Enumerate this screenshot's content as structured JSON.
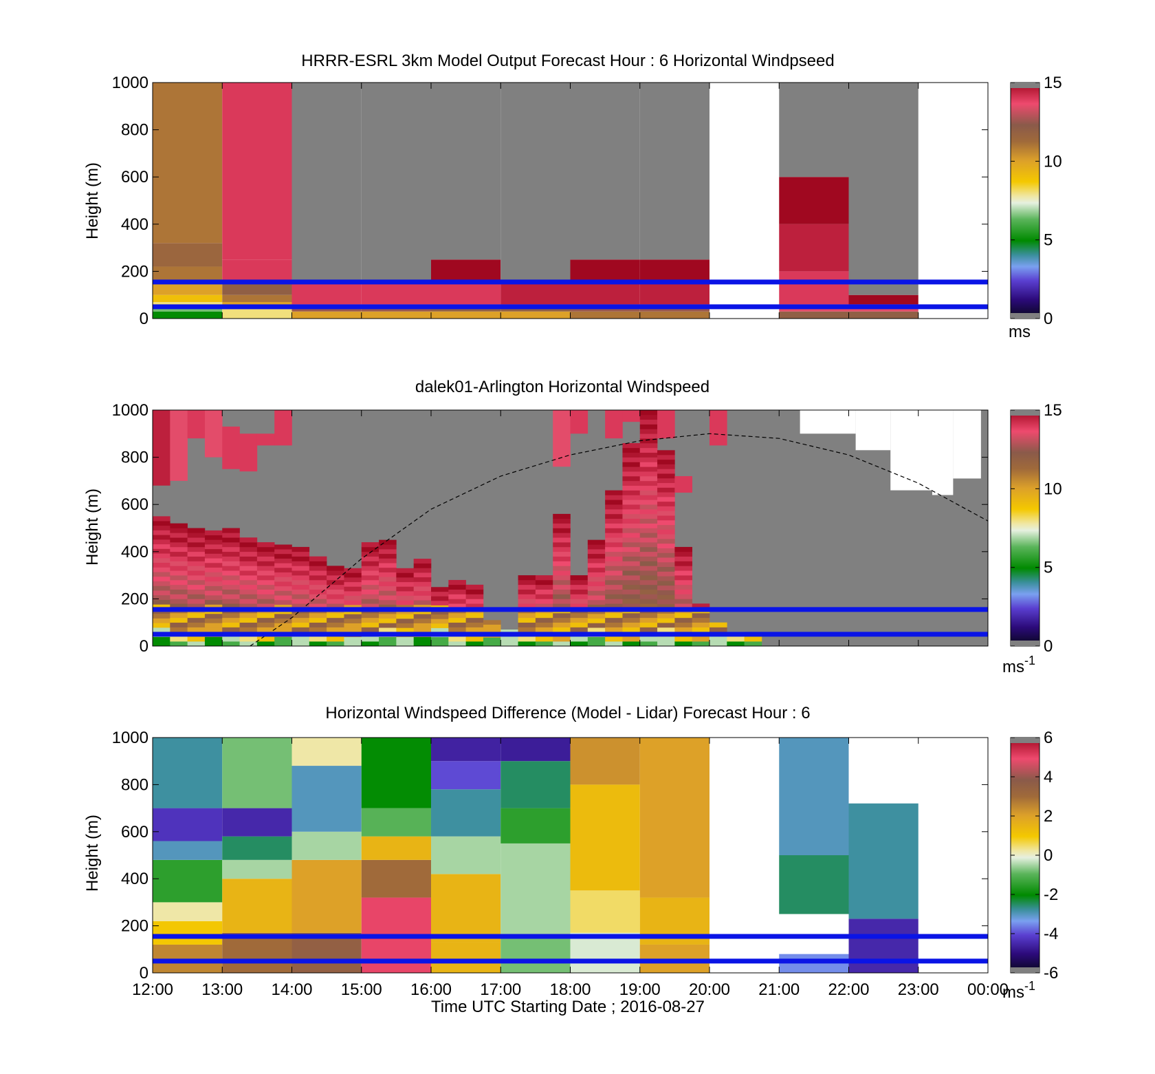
{
  "figure": {
    "xlabel": "Time UTC  Starting Date ; 2016-08-27"
  },
  "x_ticks": [
    "12:00",
    "13:00",
    "14:00",
    "15:00",
    "16:00",
    "17:00",
    "18:00",
    "19:00",
    "20:00",
    "21:00",
    "22:00",
    "23:00",
    "00:00"
  ],
  "chart_data": [
    {
      "type": "heatmap",
      "title": "HRRR-ESRL 3km Model Output   Forecast Hour : 6 Horizontal Windpseed",
      "ylabel": "Height (m)",
      "xlim": [
        12,
        24
      ],
      "ylim": [
        0,
        1000
      ],
      "y_ticks": [
        "0",
        "200",
        "400",
        "600",
        "800",
        "1000"
      ],
      "colorbar": {
        "min": 0,
        "max": 15,
        "ticks": [
          "0",
          "5",
          "10",
          "15"
        ],
        "unit": "ms"
      },
      "reference_lines_m": [
        50,
        155
      ],
      "columns": [
        {
          "hour": 12,
          "cells": [
            [
              0,
              30,
              5
            ],
            [
              30,
              50,
              6.5
            ],
            [
              50,
              70,
              8
            ],
            [
              70,
              100,
              9
            ],
            [
              100,
              150,
              10
            ],
            [
              150,
              220,
              11
            ],
            [
              220,
              320,
              11.5
            ],
            [
              320,
              1000,
              11
            ]
          ]
        },
        {
          "hour": 13,
          "cells": [
            [
              0,
              40,
              8
            ],
            [
              40,
              70,
              10
            ],
            [
              70,
              100,
              11
            ],
            [
              100,
              150,
              12
            ],
            [
              150,
              250,
              14
            ],
            [
              250,
              1000,
              14
            ]
          ]
        },
        {
          "hour": 14,
          "cells": [
            [
              0,
              30,
              10
            ],
            [
              30,
              60,
              12.5
            ],
            [
              60,
              160,
              14
            ],
            [
              160,
              1000,
              null
            ]
          ]
        },
        {
          "hour": 15,
          "cells": [
            [
              0,
              30,
              10
            ],
            [
              30,
              60,
              12.5
            ],
            [
              60,
              160,
              14
            ],
            [
              160,
              1000,
              null
            ]
          ]
        },
        {
          "hour": 16,
          "cells": [
            [
              0,
              30,
              10
            ],
            [
              30,
              60,
              12
            ],
            [
              60,
              160,
              14
            ],
            [
              160,
              250,
              15
            ],
            [
              250,
              1000,
              null
            ]
          ]
        },
        {
          "hour": 17,
          "cells": [
            [
              0,
              30,
              10
            ],
            [
              30,
              60,
              12
            ],
            [
              60,
              160,
              14.5
            ],
            [
              160,
              1000,
              null
            ]
          ]
        },
        {
          "hour": 18,
          "cells": [
            [
              0,
              30,
              11
            ],
            [
              30,
              60,
              12.5
            ],
            [
              60,
              160,
              14.5
            ],
            [
              160,
              250,
              15
            ],
            [
              250,
              1000,
              null
            ]
          ]
        },
        {
          "hour": 19,
          "cells": [
            [
              0,
              30,
              11
            ],
            [
              30,
              60,
              12.5
            ],
            [
              60,
              160,
              14.5
            ],
            [
              160,
              250,
              15
            ],
            [
              250,
              1000,
              null
            ]
          ]
        },
        {
          "hour": 21,
          "cells": [
            [
              0,
              30,
              12
            ],
            [
              30,
              60,
              13.5
            ],
            [
              60,
              200,
              14
            ],
            [
              200,
              400,
              14.5
            ],
            [
              400,
              600,
              15
            ],
            [
              600,
              1000,
              null
            ]
          ]
        },
        {
          "hour": 22,
          "cells": [
            [
              0,
              30,
              12
            ],
            [
              30,
              60,
              13.5
            ],
            [
              60,
              100,
              15
            ],
            [
              100,
              1000,
              null
            ]
          ]
        }
      ]
    },
    {
      "type": "heatmap",
      "title": "dalek01-Arlington  Horizontal Windspeed",
      "ylabel": "Height (m)",
      "xlim": [
        12,
        24
      ],
      "ylim": [
        0,
        1000
      ],
      "y_ticks": [
        "0",
        "200",
        "400",
        "600",
        "800",
        "1000"
      ],
      "colorbar": {
        "min": 0,
        "max": 15,
        "ticks": [
          "0",
          "5",
          "10",
          "15"
        ],
        "unit": "ms",
        "unit_exponent": "-1"
      },
      "reference_lines_m": [
        50,
        155
      ],
      "overlay_curve": {
        "style": "dashed",
        "points_hour_m": [
          [
            13.4,
            0
          ],
          [
            14,
            120
          ],
          [
            15,
            370
          ],
          [
            16,
            580
          ],
          [
            17,
            720
          ],
          [
            18,
            810
          ],
          [
            19,
            870
          ],
          [
            20,
            900
          ],
          [
            21,
            880
          ],
          [
            22,
            810
          ],
          [
            23,
            690
          ],
          [
            24,
            530
          ]
        ]
      },
      "columns": [
        {
          "hour": 12.0,
          "top": 550,
          "top_segments": [
            [
              680,
              1000,
              14.5
            ]
          ]
        },
        {
          "hour": 12.25,
          "top": 520,
          "top_segments": [
            [
              700,
              1000,
              13.5
            ]
          ]
        },
        {
          "hour": 12.5,
          "top": 500,
          "top_segments": [
            [
              880,
              1000,
              14
            ]
          ]
        },
        {
          "hour": 12.75,
          "top": 490,
          "top_segments": [
            [
              800,
              1000,
              13.5
            ]
          ]
        },
        {
          "hour": 13.0,
          "top": 500,
          "top_segments": [
            [
              750,
              930,
              14
            ]
          ]
        },
        {
          "hour": 13.25,
          "top": 460,
          "top_segments": [
            [
              740,
              900,
              14
            ]
          ]
        },
        {
          "hour": 13.5,
          "top": 440,
          "top_segments": [
            [
              850,
              900,
              14
            ]
          ]
        },
        {
          "hour": 13.75,
          "top": 430,
          "top_segments": [
            [
              850,
              1000,
              14
            ]
          ]
        },
        {
          "hour": 14.0,
          "top": 420,
          "top_segments": []
        },
        {
          "hour": 14.25,
          "top": 380,
          "top_segments": []
        },
        {
          "hour": 14.5,
          "top": 340,
          "top_segments": []
        },
        {
          "hour": 14.75,
          "top": 330,
          "top_segments": []
        },
        {
          "hour": 15.0,
          "top": 440,
          "top_segments": []
        },
        {
          "hour": 15.25,
          "top": 450,
          "top_segments": []
        },
        {
          "hour": 15.5,
          "top": 330,
          "top_segments": []
        },
        {
          "hour": 15.75,
          "top": 370,
          "top_segments": []
        },
        {
          "hour": 16.0,
          "top": 250,
          "top_segments": []
        },
        {
          "hour": 16.25,
          "top": 280,
          "top_segments": []
        },
        {
          "hour": 16.5,
          "top": 260,
          "top_segments": []
        },
        {
          "hour": 16.75,
          "top": 110,
          "top_segments": []
        },
        {
          "hour": 17.0,
          "top": 70,
          "top_segments": []
        },
        {
          "hour": 17.25,
          "top": 300,
          "top_segments": []
        },
        {
          "hour": 17.5,
          "top": 300,
          "top_segments": []
        },
        {
          "hour": 17.75,
          "top": 560,
          "top_segments": [
            [
              760,
              1000,
              13.5
            ]
          ]
        },
        {
          "hour": 18.0,
          "top": 300,
          "top_segments": [
            [
              900,
              1000,
              14
            ]
          ]
        },
        {
          "hour": 18.25,
          "top": 450,
          "top_segments": []
        },
        {
          "hour": 18.5,
          "top": 660,
          "top_segments": [
            [
              880,
              1000,
              14
            ]
          ]
        },
        {
          "hour": 18.75,
          "top": 860,
          "top_segments": [
            [
              950,
              1000,
              14
            ]
          ]
        },
        {
          "hour": 19.0,
          "top": 1000,
          "top_segments": []
        },
        {
          "hour": 19.25,
          "top": 830,
          "top_segments": [
            [
              880,
              1000,
              14
            ]
          ]
        },
        {
          "hour": 19.5,
          "top": 420,
          "top_segments": [
            [
              650,
              720,
              14
            ]
          ]
        },
        {
          "hour": 19.75,
          "top": 180,
          "top_segments": []
        },
        {
          "hour": 20.0,
          "top": 100,
          "top_segments": [
            [
              850,
              1000,
              14
            ]
          ]
        },
        {
          "hour": 20.25,
          "top": 60,
          "top_segments": []
        },
        {
          "hour": 20.5,
          "top": 40,
          "top_segments": []
        }
      ],
      "white_regions_hour_m": [
        [
          21.3,
          22.1,
          900,
          1000
        ],
        [
          22.1,
          22.6,
          830,
          1000
        ],
        [
          22.6,
          23.2,
          660,
          1000
        ],
        [
          23.2,
          23.5,
          640,
          1000
        ],
        [
          23.5,
          23.9,
          710,
          1000
        ]
      ]
    },
    {
      "type": "heatmap",
      "title": "Horizontal Windspeed Difference (Model - Lidar) Forecast Hour : 6",
      "ylabel": "Height (m)",
      "xlim": [
        12,
        24
      ],
      "ylim": [
        0,
        1000
      ],
      "y_ticks": [
        "0",
        "200",
        "400",
        "600",
        "800",
        "1000"
      ],
      "colorbar": {
        "min": -6,
        "max": 6,
        "ticks": [
          "-6",
          "-4",
          "-2",
          "0",
          "2",
          "4",
          "6"
        ],
        "unit": "ms",
        "unit_exponent": "-1"
      },
      "reference_lines_m": [
        50,
        155
      ],
      "columns": [
        {
          "hour": 12,
          "cells": [
            [
              0,
              120,
              2.5
            ],
            [
              120,
              220,
              1
            ],
            [
              220,
              300,
              0.2
            ],
            [
              300,
              480,
              -1.5
            ],
            [
              480,
              560,
              -3
            ],
            [
              560,
              700,
              -4.3
            ],
            [
              700,
              1000,
              -2.8
            ]
          ]
        },
        {
          "hour": 13,
          "cells": [
            [
              0,
              170,
              3
            ],
            [
              170,
              400,
              1.5
            ],
            [
              400,
              480,
              -0.5
            ],
            [
              480,
              580,
              -2.5
            ],
            [
              580,
              700,
              -4.5
            ],
            [
              700,
              1000,
              -0.8
            ]
          ]
        },
        {
          "hour": 14,
          "cells": [
            [
              0,
              170,
              3.5
            ],
            [
              170,
              480,
              2
            ],
            [
              480,
              600,
              -0.5
            ],
            [
              600,
              880,
              -3
            ],
            [
              880,
              1000,
              0.2
            ]
          ]
        },
        {
          "hour": 15,
          "cells": [
            [
              0,
              320,
              5
            ],
            [
              320,
              480,
              3
            ],
            [
              480,
              580,
              1.5
            ],
            [
              580,
              700,
              -1
            ],
            [
              700,
              1000,
              -2
            ]
          ]
        },
        {
          "hour": 16,
          "cells": [
            [
              0,
              130,
              1.5
            ],
            [
              130,
              420,
              1.5
            ],
            [
              420,
              580,
              -0.5
            ],
            [
              580,
              780,
              -2.8
            ],
            [
              780,
              900,
              -4
            ],
            [
              900,
              1000,
              -4.6
            ]
          ]
        },
        {
          "hour": 17,
          "cells": [
            [
              0,
              150,
              -0.8
            ],
            [
              150,
              550,
              -0.5
            ],
            [
              550,
              700,
              -1.5
            ],
            [
              700,
              900,
              -2.5
            ],
            [
              900,
              1000,
              -4.7
            ]
          ]
        },
        {
          "hour": 18,
          "cells": [
            [
              0,
              170,
              -0.2
            ],
            [
              170,
              350,
              0.5
            ],
            [
              350,
              800,
              1.3
            ],
            [
              800,
              1000,
              2.3
            ]
          ]
        },
        {
          "hour": 19,
          "cells": [
            [
              0,
              120,
              2
            ],
            [
              120,
              320,
              1.5
            ],
            [
              320,
              1000,
              2
            ]
          ]
        },
        {
          "hour": 21,
          "cells": [
            [
              0,
              80,
              -3.5
            ],
            [
              250,
              500,
              -2.5
            ],
            [
              500,
              1000,
              -3
            ]
          ]
        },
        {
          "hour": 22,
          "cells": [
            [
              0,
              230,
              -4.5
            ],
            [
              230,
              720,
              -2.8
            ]
          ]
        }
      ]
    }
  ]
}
